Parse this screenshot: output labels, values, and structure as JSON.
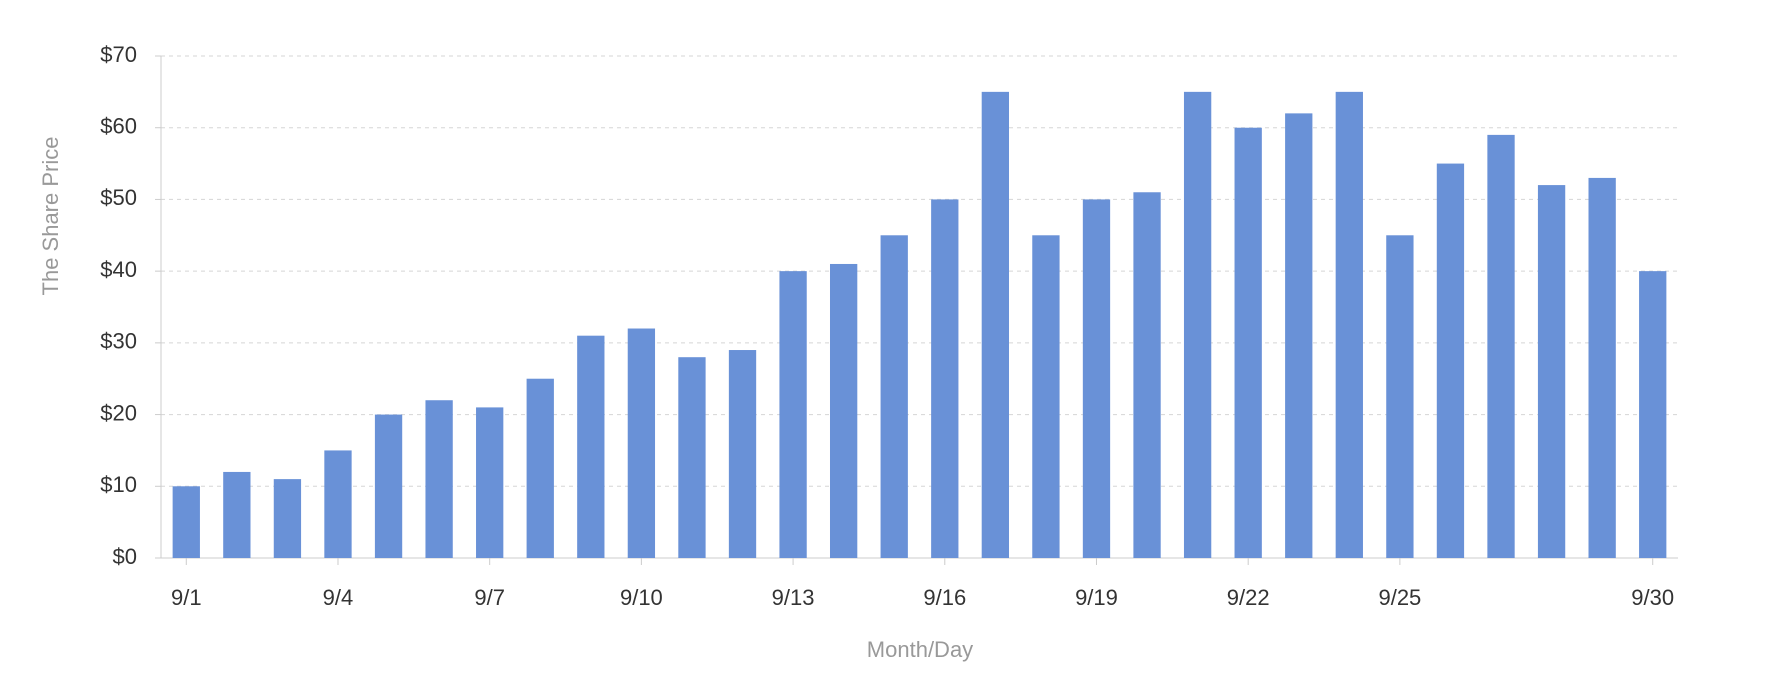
{
  "chart_data": {
    "type": "bar",
    "x_label": "Month/Day",
    "y_label": "The Share Price",
    "categories": [
      "9/1",
      null,
      null,
      "9/4",
      null,
      null,
      "9/7",
      null,
      null,
      "9/10",
      null,
      null,
      "9/13",
      null,
      null,
      "9/16",
      null,
      null,
      "9/19",
      null,
      null,
      "9/22",
      null,
      null,
      "9/25",
      null,
      null,
      null,
      null,
      "9/30"
    ],
    "values": [
      10,
      12,
      11,
      15,
      20,
      22,
      21,
      25,
      31,
      32,
      28,
      29,
      40,
      41,
      45,
      50,
      65,
      45,
      50,
      51,
      65,
      60,
      62,
      65,
      45,
      55,
      59,
      52,
      53,
      40
    ],
    "color": "#6991d7",
    "ylim": [
      0,
      70
    ],
    "yticks": [
      {
        "value": 0,
        "label": "$0"
      },
      {
        "value": 10,
        "label": "$10"
      },
      {
        "value": 20,
        "label": "$20"
      },
      {
        "value": 30,
        "label": "$30"
      },
      {
        "value": 40,
        "label": "$40"
      },
      {
        "value": 50,
        "label": "$50"
      },
      {
        "value": 60,
        "label": "$60"
      },
      {
        "value": 70,
        "label": "$70"
      }
    ],
    "grid": true
  }
}
